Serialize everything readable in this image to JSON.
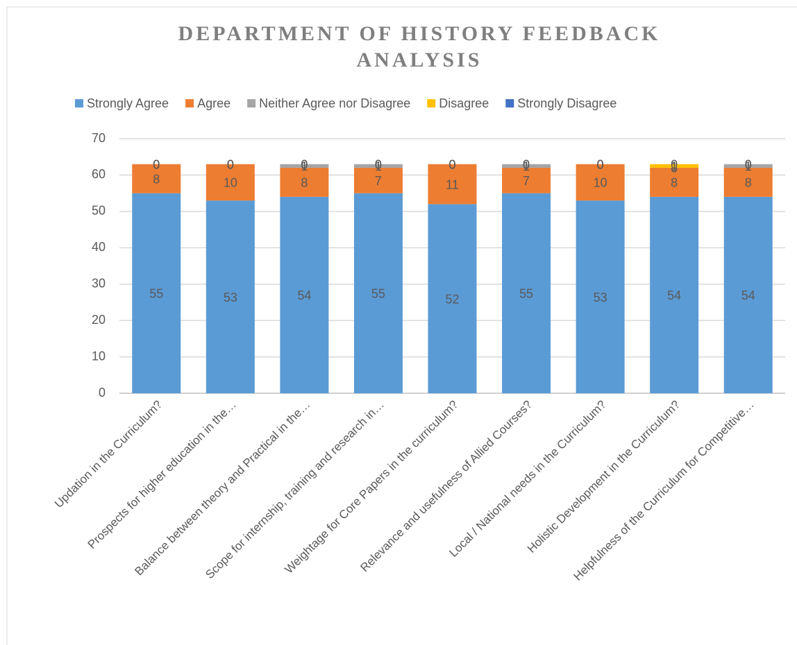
{
  "chart_data": {
    "type": "stacked_bar",
    "title": "DEPARTMENT OF HISTORY FEEDBACK ANALYSIS",
    "categories": [
      "Updation in the Curriculum?",
      "Prospects for higher education in the…",
      "Balance between theory and Practical in the…",
      "Scope for internship, training and research in…",
      "Weightage for Core Papers in the curriculum?",
      "Relevance and usefulness of Allied Courses?",
      "Local / National needs in the Curriculum?",
      "Holistic Development in the Curriculum?",
      "Helpfulness of the Curriculum for Competitive…"
    ],
    "series": [
      {
        "name": "Strongly Agree",
        "color": "#5b9bd5",
        "values": [
          55,
          53,
          54,
          55,
          52,
          55,
          53,
          54,
          54
        ]
      },
      {
        "name": "Agree",
        "color": "#ed7d31",
        "values": [
          8,
          10,
          8,
          7,
          11,
          7,
          10,
          8,
          8
        ]
      },
      {
        "name": "Neither Agree nor Disagree",
        "color": "#a5a5a5",
        "values": [
          0,
          0,
          1,
          1,
          0,
          1,
          0,
          0,
          1
        ]
      },
      {
        "name": "Disagree",
        "color": "#ffc000",
        "values": [
          0,
          0,
          0,
          0,
          0,
          0,
          0,
          1,
          0
        ]
      },
      {
        "name": "Strongly Disagree",
        "color": "#4472c4",
        "values": [
          0,
          0,
          0,
          0,
          0,
          0,
          0,
          0,
          0
        ]
      }
    ],
    "ylim": [
      0,
      70
    ],
    "yticks": [
      0,
      10,
      20,
      30,
      40,
      50,
      60,
      70
    ],
    "grid": true,
    "legend": "top"
  }
}
